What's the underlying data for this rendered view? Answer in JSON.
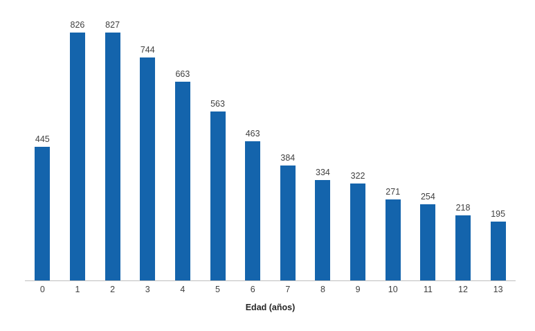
{
  "chart_data": {
    "type": "bar",
    "categories": [
      "0",
      "1",
      "2",
      "3",
      "4",
      "5",
      "6",
      "7",
      "8",
      "9",
      "10",
      "11",
      "12",
      "13"
    ],
    "values": [
      445,
      826,
      827,
      744,
      663,
      563,
      463,
      384,
      334,
      322,
      271,
      254,
      218,
      195
    ],
    "title": "",
    "xlabel": "Edad (años)",
    "ylabel": "",
    "ylim": [
      0,
      900
    ],
    "grid": false,
    "legend": "none",
    "data_labels": true,
    "bar_color": "#1464ac",
    "axis_line_color": "#bfbfbf"
  }
}
